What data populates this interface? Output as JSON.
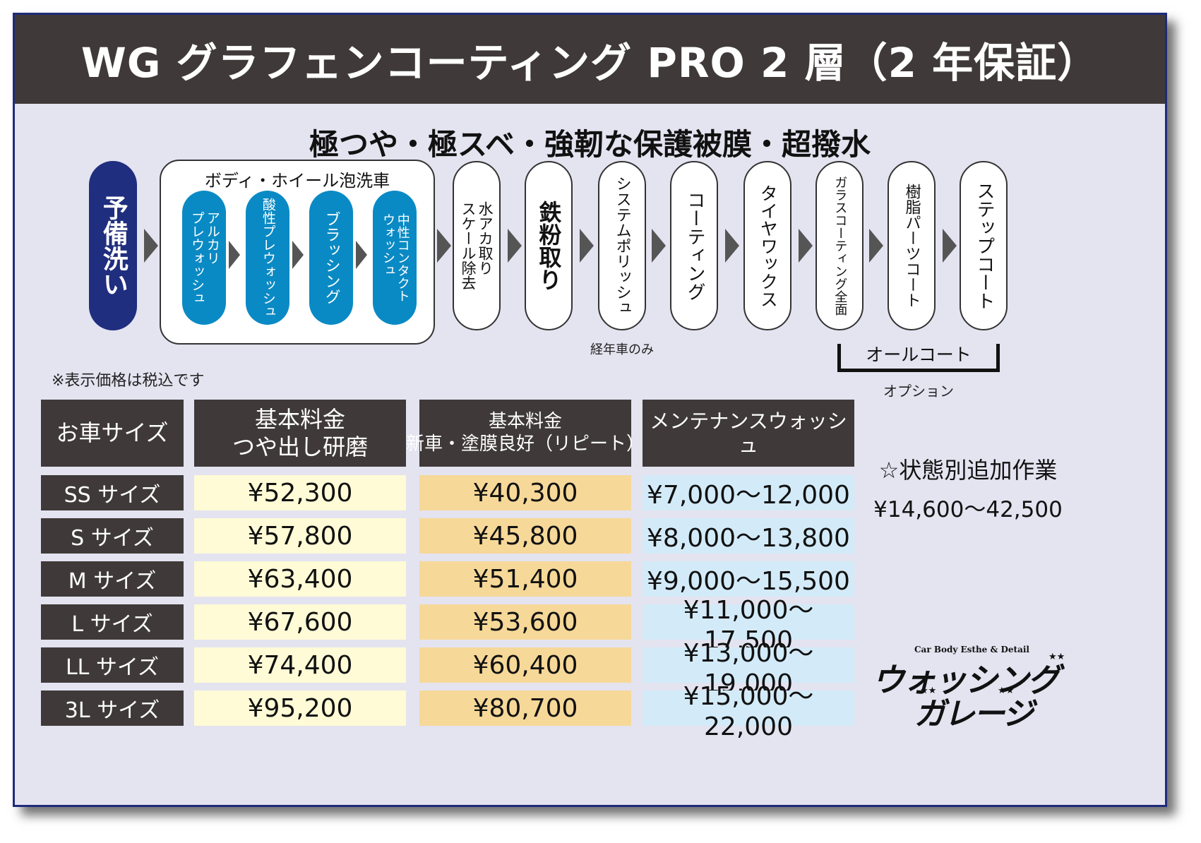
{
  "title": "WG グラフェンコーティング PRO 2 層（2 年保証）",
  "subtitle": "極つや・極スベ・強靭な保護被膜・超撥水",
  "process": {
    "pre_wash": "予備洗い",
    "group_label": "ボディ・ホイール泡洗車",
    "group_steps": [
      "アルカリ\nプレウォッシュ",
      "酸性プレウォッシュ",
      "ブラッシング",
      "中性コンタクト\nウォッシュ"
    ],
    "steps": [
      "水アカ取り\nスケール除去",
      "鉄粉取り",
      "システムポリッシュ",
      "コーティング",
      "タイヤワックス",
      "ガラスコーティング全面",
      "樹脂パーツコート",
      "ステップコート"
    ],
    "polish_note": "経年車のみ",
    "allcoat_label": "オールコート",
    "option_label": "オプション"
  },
  "tax_note": "※表示価格は税込です",
  "table": {
    "headers": [
      "お車サイズ",
      "基本料金\nつや出し研磨",
      "基本料金\n新車・塗膜良好（リピート）",
      "メンテナンスウォッシュ"
    ],
    "rows": [
      {
        "size": "SS サイズ",
        "base": "¥52,300",
        "new": "¥40,300",
        "maint": "¥7,000〜12,000"
      },
      {
        "size": "S サイズ",
        "base": "¥57,800",
        "new": "¥45,800",
        "maint": "¥8,000〜13,800"
      },
      {
        "size": "M サイズ",
        "base": "¥63,400",
        "new": "¥51,400",
        "maint": "¥9,000〜15,500"
      },
      {
        "size": "L サイズ",
        "base": "¥67,600",
        "new": "¥53,600",
        "maint": "¥11,000〜17,500"
      },
      {
        "size": "LL サイズ",
        "base": "¥74,400",
        "new": "¥60,400",
        "maint": "¥13,000〜19,000"
      },
      {
        "size": "3L サイズ",
        "base": "¥95,200",
        "new": "¥80,700",
        "maint": "¥15,000〜22,000"
      }
    ]
  },
  "extra": {
    "title": "☆状態別追加作業",
    "price": "¥14,600〜42,500"
  },
  "logo": {
    "tagline": "Car Body Esthe & Detail",
    "line1": "ウォッシング",
    "line2": "ガレージ"
  },
  "colors": {
    "header_bg": "#3f3a39",
    "card_bg": "#e4e3f0",
    "border": "#1f2b7a",
    "navy_pill": "#1f2e7e",
    "blue_pill": "#0a8ac4",
    "base_price_bg": "#fffbd6",
    "new_price_bg": "#f6d898",
    "maint_price_bg": "#d3ebf8"
  }
}
